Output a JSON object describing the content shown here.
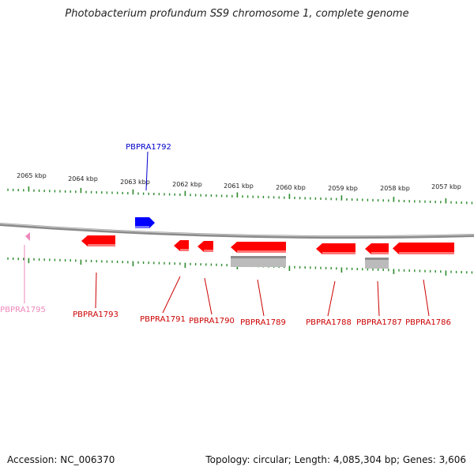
{
  "title": "Photobacterium profundum SS9 chromosome 1, complete genome",
  "footer": {
    "accession": "Accession: NC_006370",
    "summary": "Topology: circular; Length: 4,085,304 bp; Genes: 3,606"
  },
  "ticks": [
    "2065 kbp",
    "2064 kbp",
    "2063 kbp",
    "2062 kbp",
    "2061 kbp",
    "2060 kbp",
    "2059 kbp",
    "2058 kbp",
    "2057 kbp"
  ],
  "genes": [
    {
      "label": "PBPRA1792",
      "strand": "+",
      "color": "#0000cc"
    },
    {
      "label": "PBPRA1795",
      "strand": "-",
      "color": "#ee88bb"
    },
    {
      "label": "PBPRA1793",
      "strand": "-",
      "color": "#cc0000"
    },
    {
      "label": "PBPRA1791",
      "strand": "-",
      "color": "#cc0000"
    },
    {
      "label": "PBPRA1790",
      "strand": "-",
      "color": "#cc0000"
    },
    {
      "label": "PBPRA1789",
      "strand": "-",
      "color": "#cc0000"
    },
    {
      "label": "PBPRA1788",
      "strand": "-",
      "color": "#cc0000"
    },
    {
      "label": "PBPRA1787",
      "strand": "-",
      "color": "#cc0000"
    },
    {
      "label": "PBPRA1786",
      "strand": "-",
      "color": "#cc0000"
    }
  ],
  "colors": {
    "tick": "#2a8a2a",
    "backbone": "#888888",
    "gene_fill": "#ff0000",
    "forward_fill": "#0000ff",
    "rna_fill": "#bbbbbb"
  }
}
